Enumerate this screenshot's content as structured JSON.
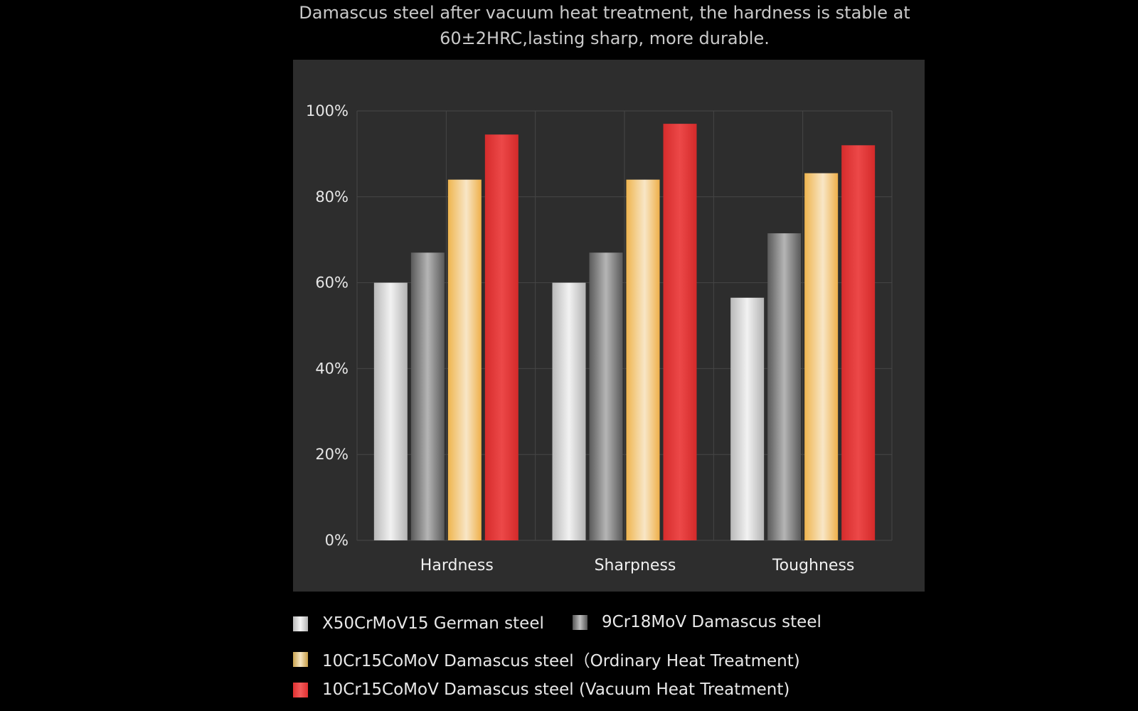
{
  "chart_data": {
    "type": "bar",
    "title": "Damascus steel after vacuum heat treatment, the hardness is stable at 60±2HRC,lasting sharp, more durable.",
    "categories": [
      "Hardness",
      "Sharpness",
      "Toughness"
    ],
    "series": [
      {
        "name": "X50CrMoV15 German steel",
        "values": [
          60,
          60,
          56.5
        ],
        "color": "#d8d8d8"
      },
      {
        "name": "9Cr18MoV Damascus steel",
        "values": [
          67,
          67,
          71.5
        ],
        "color": "#8c8c8c"
      },
      {
        "name": "10Cr15CoMoV Damascus steel（Ordinary Heat Treatment)",
        "values": [
          84,
          84,
          85.5
        ],
        "color": "#f2c46a"
      },
      {
        "name": "10Cr15CoMoV Damascus steel (Vacuum Heat Treatment)",
        "values": [
          94.5,
          97,
          92
        ],
        "color": "#e03a3a"
      }
    ],
    "yticks": [
      "0%",
      "20%",
      "40%",
      "60%",
      "80%",
      "100%"
    ],
    "ylim": [
      0,
      100
    ],
    "grid": true,
    "legend_position": "bottom"
  }
}
